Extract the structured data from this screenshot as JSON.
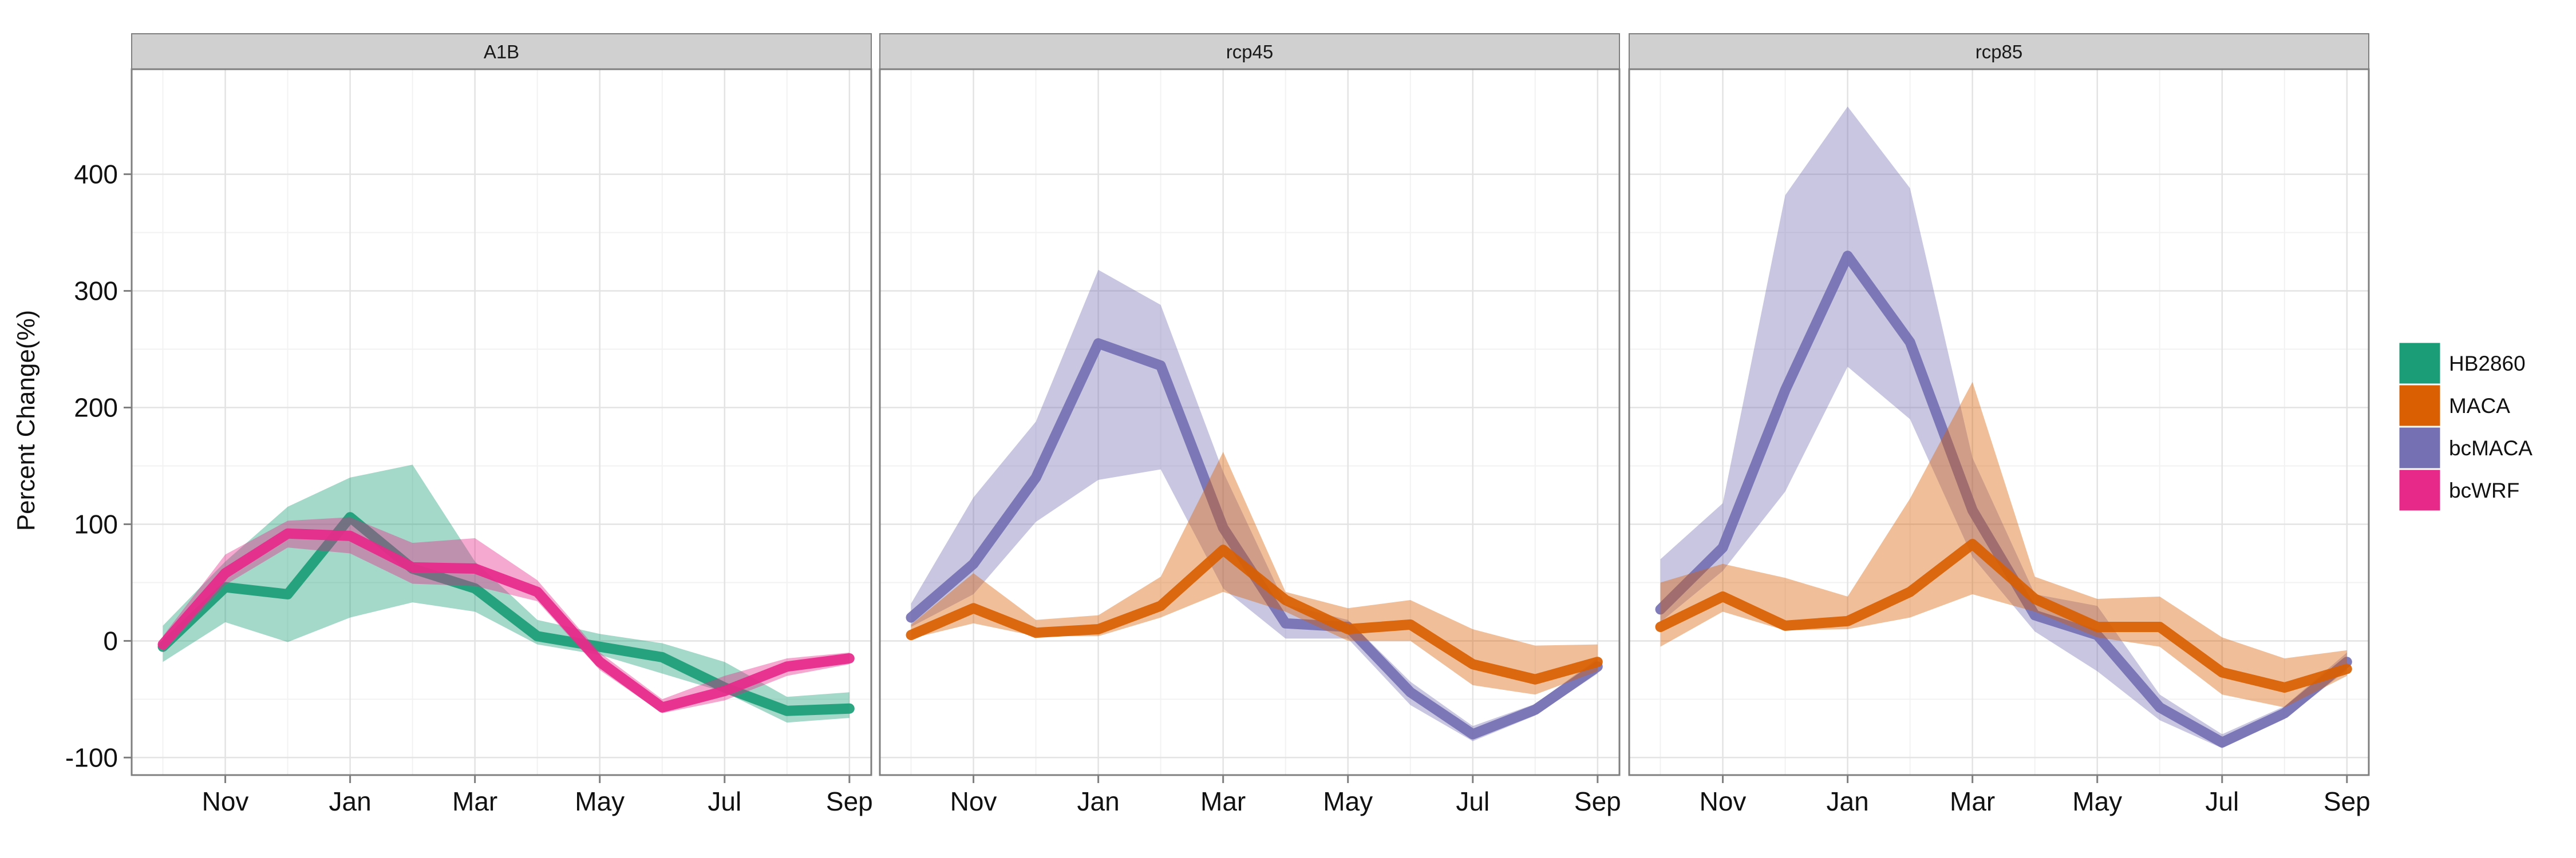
{
  "chart_data": {
    "type": "line",
    "ylabel": "Percent Change(%)",
    "xlabel": "",
    "x_months": [
      10,
      11,
      12,
      13,
      14,
      15,
      16,
      17,
      18,
      19,
      20,
      21
    ],
    "x_ticks": [
      {
        "m": 11,
        "label": "Nov"
      },
      {
        "m": 13,
        "label": "Jan"
      },
      {
        "m": 15,
        "label": "Mar"
      },
      {
        "m": 17,
        "label": "May"
      },
      {
        "m": 19,
        "label": "Jul"
      },
      {
        "m": 21,
        "label": "Sep"
      }
    ],
    "ylim": [
      -115,
      490
    ],
    "y_ticks": [
      -100,
      0,
      100,
      200,
      300,
      400
    ],
    "grid": true,
    "legend_position": "right",
    "legend": [
      {
        "key": "HB2860",
        "label": "HB2860",
        "color": "#1b9e77"
      },
      {
        "key": "MACA",
        "label": "MACA",
        "color": "#d95f02"
      },
      {
        "key": "bcMACA",
        "label": "bcMACA",
        "color": "#7570b3"
      },
      {
        "key": "bcWRF",
        "label": "bcWRF",
        "color": "#e7298a"
      }
    ],
    "panels": [
      {
        "title": "A1B",
        "series": [
          {
            "key": "HB2860",
            "values": [
              -5,
              46,
              40,
              106,
              62,
              45,
              4,
              -5,
              -14,
              -40,
              -60,
              -58
            ],
            "lower": [
              -18,
              16,
              -1,
              20,
              33,
              25,
              -3,
              -12,
              -28,
              -44,
              -70,
              -66
            ],
            "upper": [
              13,
              68,
              115,
              140,
              151,
              68,
              18,
              6,
              -2,
              -18,
              -48,
              -44
            ]
          },
          {
            "key": "bcWRF",
            "values": [
              -3,
              58,
              92,
              90,
              63,
              62,
              42,
              -18,
              -57,
              -43,
              -22,
              -15
            ],
            "lower": [
              -10,
              48,
              80,
              75,
              49,
              47,
              34,
              -25,
              -62,
              -51,
              -30,
              -20
            ],
            "upper": [
              4,
              74,
              103,
              106,
              84,
              88,
              52,
              -10,
              -50,
              -30,
              -15,
              -10
            ]
          }
        ]
      },
      {
        "title": "rcp45",
        "series": [
          {
            "key": "bcMACA",
            "values": [
              20,
              66,
              140,
              255,
              236,
              97,
              15,
              12,
              -44,
              -80,
              -59,
              -22
            ],
            "lower": [
              12,
              40,
              102,
              138,
              147,
              45,
              2,
              2,
              -55,
              -86,
              -64,
              -28
            ],
            "upper": [
              32,
              123,
              188,
              318,
              288,
              145,
              31,
              18,
              -35,
              -73,
              -54,
              -15
            ]
          },
          {
            "key": "MACA",
            "values": [
              5,
              28,
              7,
              10,
              30,
              78,
              35,
              10,
              14,
              -20,
              -33,
              -18
            ],
            "lower": [
              2,
              15,
              4,
              4,
              20,
              42,
              25,
              0,
              0,
              -38,
              -46,
              -26
            ],
            "upper": [
              14,
              58,
              18,
              22,
              55,
              162,
              42,
              28,
              35,
              10,
              -4,
              -3
            ]
          }
        ]
      },
      {
        "title": "rcp85",
        "series": [
          {
            "key": "bcMACA",
            "values": [
              27,
              80,
              215,
              330,
              256,
              112,
              22,
              5,
              -57,
              -87,
              -62,
              -18
            ],
            "lower": [
              16,
              60,
              128,
              235,
              190,
              72,
              8,
              -26,
              -68,
              -92,
              -67,
              -25
            ],
            "upper": [
              70,
              118,
              382,
              458,
              388,
              157,
              40,
              30,
              -46,
              -80,
              -56,
              -10
            ]
          },
          {
            "key": "MACA",
            "values": [
              12,
              38,
              13,
              17,
              42,
              83,
              36,
              12,
              12,
              -27,
              -40,
              -24
            ],
            "lower": [
              -5,
              25,
              9,
              10,
              20,
              40,
              25,
              3,
              -5,
              -46,
              -57,
              -30
            ],
            "upper": [
              50,
              66,
              54,
              38,
              122,
              222,
              55,
              36,
              38,
              3,
              -15,
              -8
            ]
          }
        ]
      }
    ]
  }
}
